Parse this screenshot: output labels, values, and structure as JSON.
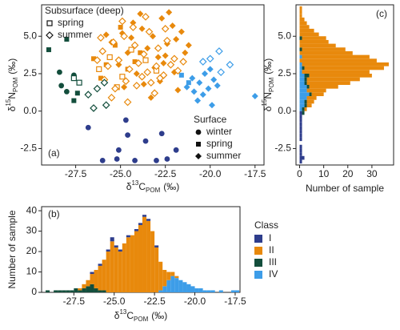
{
  "chart_data": [
    {
      "type": "scatter",
      "annotation": "(a)",
      "xlabel": {
        "delta": "δ",
        "sup": "13",
        "element": "C",
        "sub": "POM",
        "unit": "(‰)"
      },
      "ylabel": {
        "delta": "δ",
        "sup": "15",
        "element": "N",
        "sub": "POM",
        "unit": "(‰)"
      },
      "xlim": [
        -29.4,
        -17.0
      ],
      "xticks": [
        {
          "value": -27.5,
          "label": "-27.5"
        },
        {
          "value": -25,
          "label": "-25.0"
        },
        {
          "value": -22.5,
          "label": "-22.5"
        },
        {
          "value": -20,
          "label": "-20.0"
        },
        {
          "value": -17.5,
          "label": "-17.5"
        }
      ],
      "ylim": [
        -3.6,
        7.1
      ],
      "yticks": [
        {
          "value": -2.5,
          "label": "-2.5"
        },
        {
          "value": 0,
          "label": "0.0"
        },
        {
          "value": 2.5,
          "label": "2.5"
        },
        {
          "value": 5,
          "label": "5.0"
        }
      ],
      "legend": [
        {
          "title": "Subsurface (deep)",
          "corner": "top-left",
          "items": [
            {
              "name": "spring",
              "marker": "square",
              "filled": false
            },
            {
              "name": "summer",
              "marker": "diamond",
              "filled": false
            }
          ]
        },
        {
          "title": "Surface",
          "corner": "bottom-right",
          "items": [
            {
              "name": "winter",
              "marker": "circle",
              "filled": true
            },
            {
              "name": "spring",
              "marker": "square",
              "filled": true
            },
            {
              "name": "summer",
              "marker": "diamond",
              "filled": true
            }
          ]
        }
      ],
      "series": [
        {
          "marker": "circle",
          "filled": true,
          "color": "#2e3d8c",
          "x": [
            -26.0,
            -25.2,
            -24.2,
            -23.0,
            -22.4,
            -25.1,
            -24.6,
            -22.7,
            -21.9,
            -24.7,
            -26.8,
            -23.6
          ],
          "values": [
            -3.3,
            -3.2,
            -3.3,
            -3.3,
            -3.2,
            -2.6,
            -1.6,
            -1.5,
            -2.6,
            -0.6,
            -1.1,
            -2.0
          ]
        },
        {
          "marker": "circle",
          "filled": true,
          "color": "#134e3c",
          "x": [
            -28.3,
            -28.4,
            -27.6,
            -28.0
          ],
          "values": [
            1.7,
            2.6,
            2.4,
            1.3
          ]
        },
        {
          "marker": "square",
          "filled": true,
          "color": "#134e3c",
          "x": [
            -29.0,
            -28.0,
            -27.6,
            -27.4
          ],
          "values": [
            4.1,
            4.8,
            0.7,
            1.2
          ]
        },
        {
          "marker": "square",
          "filled": true,
          "color": "#e8890c",
          "x": [
            -26.5,
            -25.8,
            -25.3,
            -24.6,
            -23.9,
            -26.1,
            -25.0,
            -24.2
          ],
          "values": [
            3.5,
            3.1,
            4.4,
            2.8,
            3.9,
            2.2,
            5.6,
            3.3
          ]
        },
        {
          "marker": "square",
          "filled": true,
          "color": "#3d9de8",
          "x": [
            -21.6,
            -21.2
          ],
          "values": [
            2.4,
            1.9
          ]
        },
        {
          "marker": "diamond",
          "filled": true,
          "color": "#e8890c",
          "x": [
            -25.5,
            -24.9,
            -24.3,
            -23.8,
            -23.2,
            -22.7,
            -22.1,
            -21.6,
            -24.6,
            -23.5,
            -22.9,
            -22.4,
            -21.9,
            -23.1,
            -24.1,
            -25.1,
            -22.6,
            -23.7,
            -21.4,
            -22.0,
            -24.8,
            -23.3,
            -22.8,
            -21.8,
            -22.3,
            -23.9,
            -24.4,
            -25.8,
            -21.2,
            -22.5
          ],
          "values": [
            4.6,
            5.2,
            5.9,
            5.5,
            5.0,
            6.2,
            5.7,
            5.3,
            3.9,
            4.2,
            3.6,
            4.5,
            4.8,
            2.9,
            2.5,
            3.1,
            3.2,
            1.8,
            3.9,
            2.6,
            1.6,
            0.9,
            2.0,
            1.4,
            6.6,
            6.5,
            4.9,
            5.1,
            4.4,
            3.7
          ]
        },
        {
          "marker": "diamond",
          "filled": true,
          "color": "#3d9de8",
          "x": [
            -21.0,
            -20.6,
            -20.3,
            -20.1,
            -19.8,
            -20.9,
            -20.4,
            -19.6,
            -21.3,
            -20.7,
            -17.5,
            -20.0,
            -19.9
          ],
          "values": [
            2.2,
            1.9,
            2.5,
            1.5,
            2.1,
            1.3,
            1.1,
            1.7,
            1.6,
            0.7,
            1.0,
            2.8,
            0.4
          ]
        },
        {
          "marker": "square",
          "filled": false,
          "color": "#134e3c",
          "x": [
            -27.6,
            -27.3
          ],
          "values": [
            2.2,
            1.9
          ]
        },
        {
          "marker": "square",
          "filled": false,
          "color": "#e8890c",
          "x": [
            -26.2,
            -25.6,
            -24.9,
            -24.4,
            -23.6,
            -23.0,
            -25.2
          ],
          "values": [
            2.8,
            3.6,
            2.3,
            4.1,
            3.4,
            2.7,
            1.6
          ]
        },
        {
          "marker": "diamond",
          "filled": false,
          "color": "#e8890c",
          "x": [
            -26.0,
            -25.4,
            -24.8,
            -24.2,
            -23.7,
            -23.4,
            -22.9,
            -22.4,
            -22.0,
            -25.7,
            -25.1,
            -24.5,
            -24.0,
            -23.5,
            -23.0,
            -22.6,
            -22.2,
            -25.9,
            -25.3,
            -24.7,
            -24.1,
            -23.8,
            -23.3,
            -22.8,
            -26.3,
            -24.9,
            -24.3,
            -23.6,
            -22.5,
            -25.5,
            -23.1,
            -24.6,
            -26.1,
            -21.8,
            -21.5
          ],
          "values": [
            4.0,
            4.6,
            5.0,
            4.4,
            3.8,
            5.3,
            4.2,
            4.7,
            3.5,
            3.0,
            3.4,
            2.8,
            3.2,
            2.6,
            3.0,
            2.4,
            3.1,
            2.1,
            1.5,
            2.0,
            1.7,
            2.3,
            1.9,
            2.2,
            3.4,
            6.0,
            5.6,
            6.3,
            5.5,
            0.9,
            1.2,
            0.6,
            4.9,
            2.7,
            3.3
          ]
        },
        {
          "marker": "diamond",
          "filled": false,
          "color": "#134e3c",
          "x": [
            -26.5,
            -25.8,
            -26.3,
            -26.8,
            -25.9
          ],
          "values": [
            0.2,
            0.4,
            1.5,
            1.1,
            1.9
          ]
        },
        {
          "marker": "diamond",
          "filled": false,
          "color": "#3d9de8",
          "x": [
            -20.0,
            -19.5,
            -18.9,
            -19.4,
            -20.4
          ],
          "values": [
            3.5,
            4.0,
            3.1,
            2.6,
            3.3
          ]
        }
      ]
    },
    {
      "type": "histogram",
      "orientation": "vertical",
      "annotation": "(b)",
      "xlabel": {
        "delta": "δ",
        "sup": "13",
        "element": "C",
        "sub": "POM",
        "unit": "(‰)"
      },
      "ylabel": "Number of sample",
      "legend_title": "Class",
      "xlim": [
        -29.5,
        -17.2
      ],
      "xticks": [
        {
          "value": -27.5,
          "label": "-27.5"
        },
        {
          "value": -25,
          "label": "-25.0"
        },
        {
          "value": -22.5,
          "label": "-22.5"
        },
        {
          "value": -20,
          "label": "-20.0"
        },
        {
          "value": -17.5,
          "label": "-17.5"
        }
      ],
      "ylim": [
        0,
        42
      ],
      "yticks": [
        0,
        10,
        20,
        30,
        40
      ],
      "bins": [
        -29.25,
        -29.0,
        -28.75,
        -28.5,
        -28.25,
        -28.0,
        -27.75,
        -27.5,
        -27.25,
        -27.0,
        -26.75,
        -26.5,
        -26.25,
        -26.0,
        -25.75,
        -25.5,
        -25.25,
        -25.0,
        -24.75,
        -24.5,
        -24.25,
        -24.0,
        -23.75,
        -23.5,
        -23.25,
        -23.0,
        -22.75,
        -22.5,
        -22.25,
        -22.0,
        -21.75,
        -21.5,
        -21.25,
        -21.0,
        -20.75,
        -20.5,
        -20.25,
        -20.0,
        -19.75,
        -19.5,
        -19.25,
        -19.0,
        -18.75,
        -18.5,
        -18.25,
        -18.0,
        -17.75,
        -17.5,
        -17.25
      ],
      "series": [
        {
          "name": "III",
          "color": "#134e3c",
          "values": [
            1,
            0,
            1,
            1,
            1,
            1,
            1,
            2,
            1,
            2,
            3,
            4,
            2,
            1,
            1,
            0,
            0,
            0,
            0,
            0,
            0,
            0,
            0,
            0,
            0,
            0,
            0,
            0,
            0,
            0,
            0,
            0,
            0,
            0,
            0,
            0,
            0,
            0,
            0,
            0,
            0,
            0,
            0,
            0,
            0,
            0,
            0,
            0
          ]
        },
        {
          "name": "IV",
          "color": "#3d9de8",
          "values": [
            0,
            0,
            0,
            0,
            0,
            0,
            0,
            0,
            0,
            0,
            0,
            0,
            0,
            0,
            0,
            0,
            0,
            0,
            0,
            0,
            0,
            0,
            0,
            0,
            0,
            0,
            0,
            0,
            1,
            3,
            6,
            8,
            7,
            6,
            5,
            4,
            3,
            2,
            2,
            1,
            1,
            1,
            0,
            1,
            0,
            0,
            1,
            1
          ]
        },
        {
          "name": "II",
          "color": "#e8890c",
          "values": [
            0,
            0,
            0,
            0,
            0,
            0,
            0,
            0,
            1,
            2,
            3,
            5,
            9,
            12,
            15,
            20,
            25,
            22,
            20,
            24,
            27,
            28,
            30,
            33,
            37,
            35,
            30,
            22,
            14,
            8,
            4,
            2,
            1,
            0,
            0,
            0,
            0,
            0,
            0,
            0,
            0,
            0,
            0,
            0,
            0,
            0,
            0,
            0
          ]
        },
        {
          "name": "I",
          "color": "#2e3d8c",
          "values": [
            0,
            0,
            0,
            0,
            0,
            0,
            0,
            0,
            0,
            0,
            0,
            1,
            0,
            1,
            0,
            1,
            2,
            1,
            1,
            0,
            1,
            0,
            1,
            1,
            1,
            1,
            0,
            1,
            0,
            0,
            0,
            0,
            0,
            0,
            0,
            0,
            0,
            0,
            0,
            0,
            0,
            0,
            0,
            0,
            0,
            0,
            0,
            0
          ]
        }
      ],
      "legend_order": [
        "I",
        "II",
        "III",
        "IV"
      ]
    },
    {
      "type": "histogram",
      "orientation": "horizontal",
      "annotation": "(c)",
      "xlabel": "Number of sample",
      "ylabel": {
        "delta": "δ",
        "sup": "15",
        "element": "N",
        "sub": "POM",
        "unit": "(‰)"
      },
      "xlim": [
        -1.5,
        39
      ],
      "xticks": [
        0,
        10,
        20,
        30
      ],
      "ylim": [
        -3.6,
        7.1
      ],
      "yticks": [
        {
          "value": -2.5,
          "label": "-2.5"
        },
        {
          "value": 0,
          "label": "0.0"
        },
        {
          "value": 2.5,
          "label": "2.5"
        },
        {
          "value": 5,
          "label": "5.0"
        }
      ],
      "bins": [
        -3.5,
        -3.25,
        -3.0,
        -2.75,
        -2.5,
        -2.25,
        -2.0,
        -1.75,
        -1.5,
        -1.25,
        -1.0,
        -0.75,
        -0.5,
        -0.25,
        0.0,
        0.25,
        0.5,
        0.75,
        1.0,
        1.25,
        1.5,
        1.75,
        2.0,
        2.25,
        2.5,
        2.75,
        3.0,
        3.25,
        3.5,
        3.75,
        4.0,
        4.25,
        4.5,
        4.75,
        5.0,
        5.25,
        5.5,
        5.75,
        6.0,
        6.25,
        6.5,
        6.75,
        7.0
      ],
      "series": [
        {
          "name": "I",
          "color": "#2e3d8c",
          "values": [
            1,
            2,
            1,
            1,
            1,
            0,
            1,
            1,
            1,
            1,
            1,
            1,
            1,
            1,
            0,
            0,
            0,
            0,
            0,
            0,
            0,
            0,
            0,
            0,
            0,
            0,
            0,
            0,
            0,
            0,
            0,
            0,
            0,
            0,
            0,
            0,
            0,
            0,
            0,
            0,
            0,
            0
          ]
        },
        {
          "name": "IV",
          "color": "#3d9de8",
          "values": [
            0,
            0,
            0,
            0,
            0,
            0,
            0,
            0,
            0,
            0,
            0,
            0,
            0,
            0,
            1,
            2,
            2,
            3,
            4,
            3,
            3,
            2,
            2,
            2,
            1,
            1,
            1,
            0,
            1,
            0,
            0,
            0,
            0,
            0,
            0,
            0,
            0,
            0,
            0,
            0,
            0,
            0
          ]
        },
        {
          "name": "III",
          "color": "#134e3c",
          "values": [
            0,
            0,
            0,
            0,
            0,
            0,
            0,
            0,
            0,
            0,
            0,
            0,
            0,
            1,
            1,
            1,
            1,
            0,
            1,
            0,
            1,
            1,
            1,
            2,
            0,
            1,
            0,
            0,
            0,
            0,
            1,
            0,
            0,
            1,
            0,
            0,
            0,
            0,
            0,
            0,
            0,
            0
          ]
        },
        {
          "name": "II",
          "color": "#e8890c",
          "values": [
            0,
            0,
            0,
            0,
            0,
            0,
            0,
            0,
            0,
            0,
            0,
            0,
            0,
            0,
            1,
            2,
            3,
            4,
            5,
            8,
            12,
            18,
            22,
            26,
            28,
            33,
            36,
            32,
            28,
            22,
            18,
            15,
            12,
            10,
            8,
            6,
            4,
            3,
            2,
            1,
            1,
            1
          ]
        }
      ]
    }
  ]
}
